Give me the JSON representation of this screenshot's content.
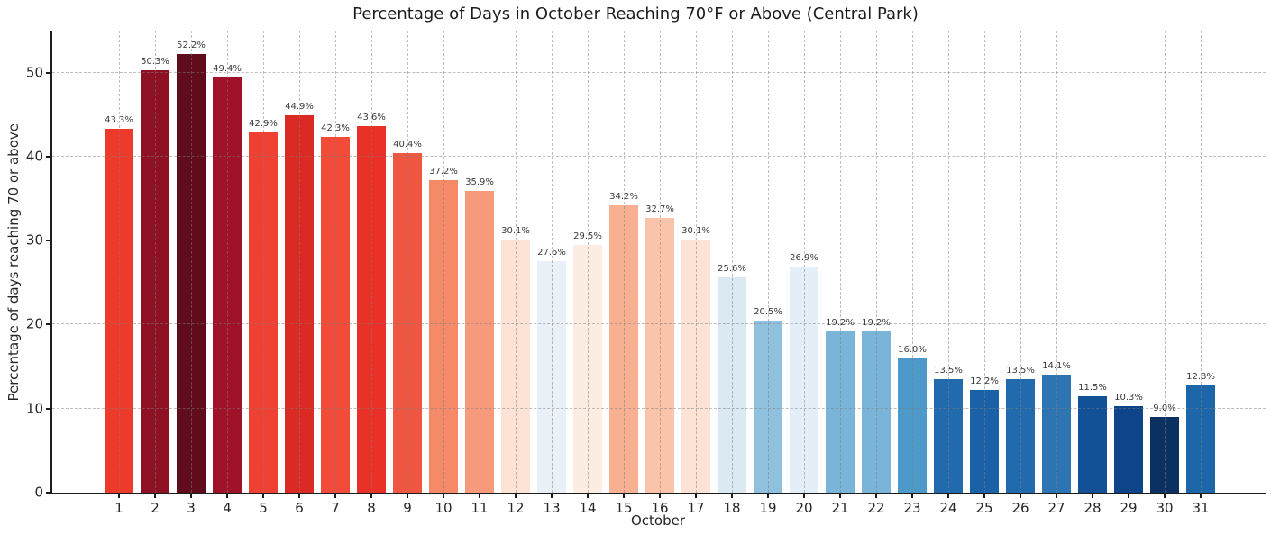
{
  "chart_data": {
    "type": "bar",
    "title": "Percentage of Days in October Reaching 70°F or Above (Central Park)",
    "xlabel": "October",
    "ylabel": "Percentage of days reaching 70 or above",
    "categories": [
      "1",
      "2",
      "3",
      "4",
      "5",
      "6",
      "7",
      "8",
      "9",
      "10",
      "11",
      "12",
      "13",
      "14",
      "15",
      "16",
      "17",
      "18",
      "19",
      "20",
      "21",
      "22",
      "23",
      "24",
      "25",
      "26",
      "27",
      "28",
      "29",
      "30",
      "31"
    ],
    "values": [
      43.3,
      50.3,
      52.2,
      49.4,
      42.9,
      44.9,
      42.3,
      43.6,
      40.4,
      37.2,
      35.9,
      30.1,
      27.6,
      29.5,
      34.2,
      32.7,
      30.1,
      25.6,
      20.5,
      26.9,
      19.2,
      19.2,
      16.0,
      13.5,
      12.2,
      13.5,
      14.1,
      11.5,
      10.3,
      9.0,
      12.8
    ],
    "value_labels": [
      "43.3%",
      "50.3%",
      "52.2%",
      "49.4%",
      "42.9%",
      "44.9%",
      "42.3%",
      "43.6%",
      "40.4%",
      "37.2%",
      "35.9%",
      "30.1%",
      "27.6%",
      "29.5%",
      "34.2%",
      "32.7%",
      "30.1%",
      "25.6%",
      "20.5%",
      "26.9%",
      "19.2%",
      "19.2%",
      "16.0%",
      "13.5%",
      "12.2%",
      "13.5%",
      "14.1%",
      "11.5%",
      "10.3%",
      "9.0%",
      "12.8%"
    ],
    "bar_colors": [
      "#ee3a2a",
      "#8e1023",
      "#610c1d",
      "#9f1227",
      "#ef4133",
      "#da2a23",
      "#f34b39",
      "#e93128",
      "#f05741",
      "#f48a68",
      "#f69a7b",
      "#fce3d5",
      "#e9f0f7",
      "#fdece1",
      "#f8b093",
      "#fac4ab",
      "#fce3d5",
      "#dbe9f2",
      "#8fc0dd",
      "#e4eef6",
      "#7ab4d8",
      "#7ab4d8",
      "#4d99c9",
      "#226aae",
      "#1a61a7",
      "#226aae",
      "#2d74b3",
      "#135197",
      "#0e4489",
      "#0a3161",
      "#1e66aa"
    ],
    "ylim": [
      0,
      55
    ],
    "yticks": [
      0,
      10,
      20,
      30,
      40,
      50
    ],
    "grid": true,
    "legend_position": "none",
    "background_color": "#ffffff"
  }
}
